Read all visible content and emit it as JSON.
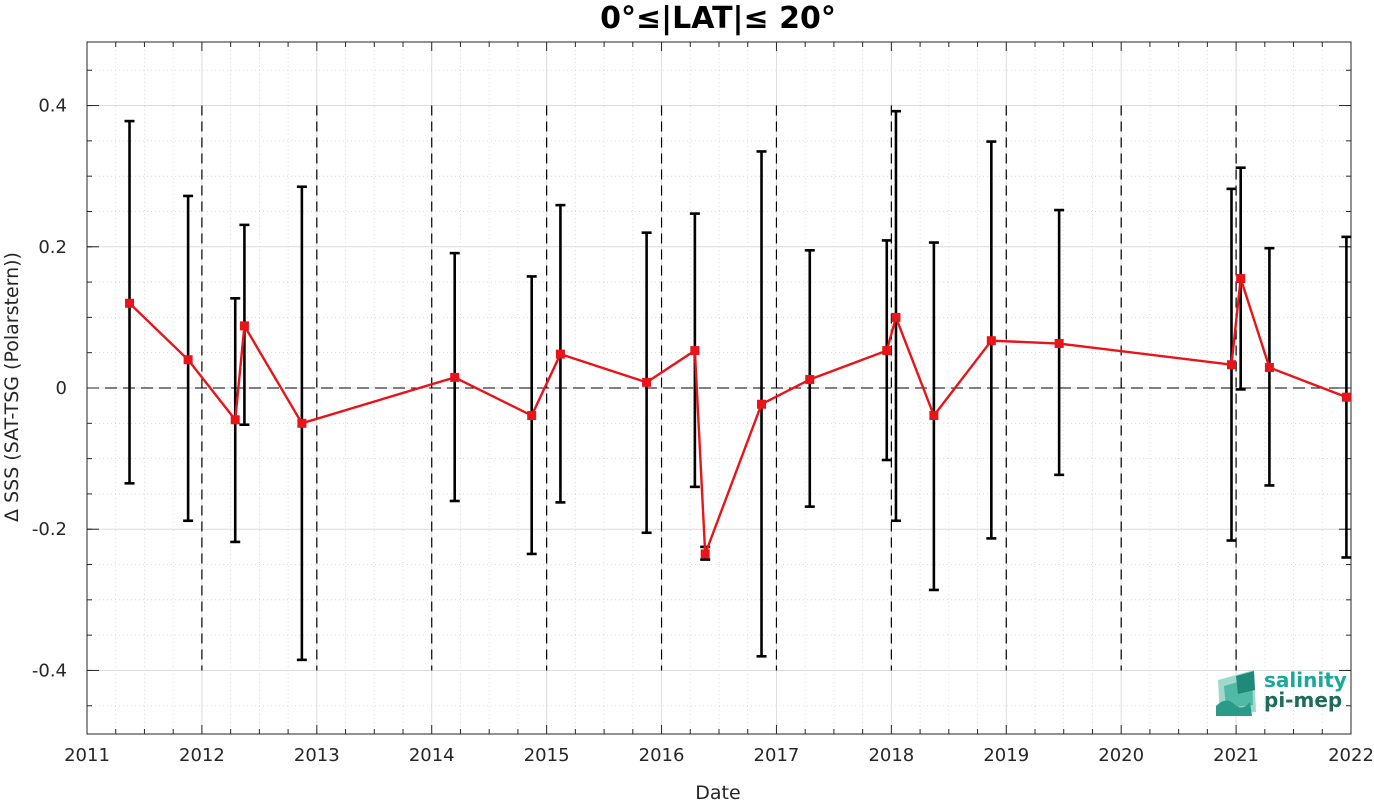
{
  "chart_data": {
    "type": "line",
    "title": "0°≤|LAT|≤ 20°",
    "xlabel": "Date",
    "ylabel": "Δ SSS (SAT-TSG (Polarstern))",
    "xlim": [
      2011,
      2022
    ],
    "ylim": [
      -0.49,
      0.49
    ],
    "x_ticks": [
      2011,
      2012,
      2013,
      2014,
      2015,
      2016,
      2017,
      2018,
      2019,
      2020,
      2021,
      2022
    ],
    "x_tick_labels": [
      "2011",
      "2012",
      "2013",
      "2014",
      "2015",
      "2016",
      "2017",
      "2018",
      "2019",
      "2020",
      "2021",
      "2022"
    ],
    "y_ticks": [
      -0.4,
      -0.2,
      0,
      0.2,
      0.4
    ],
    "y_tick_labels": [
      "-0.4",
      "-0.2",
      "0",
      "0.2",
      "0.4"
    ],
    "grid": true,
    "zero_line": true,
    "year_boundary_lines": [
      2012,
      2013,
      2014,
      2015,
      2016,
      2017,
      2018,
      2019,
      2020,
      2021
    ],
    "series": [
      {
        "color": "#e8141a",
        "x": [
          2011.37,
          2011.88,
          2012.29,
          2012.37,
          2012.87,
          2014.2,
          2014.87,
          2015.12,
          2015.87,
          2016.29,
          2016.38,
          2016.87,
          2017.29,
          2017.96,
          2018.04,
          2018.37,
          2018.87,
          2019.46,
          2020.96,
          2021.04,
          2021.29,
          2021.96
        ],
        "y": [
          0.12,
          0.04,
          -0.045,
          0.088,
          -0.05,
          0.015,
          -0.039,
          0.048,
          0.008,
          0.053,
          -0.235,
          -0.023,
          0.012,
          0.053,
          0.1,
          -0.039,
          0.067,
          0.063,
          0.033,
          0.155,
          0.029,
          -0.013
        ],
        "err_low": [
          -0.135,
          -0.188,
          -0.218,
          -0.052,
          -0.385,
          -0.16,
          -0.235,
          -0.162,
          -0.205,
          -0.14,
          -0.243,
          -0.38,
          -0.168,
          -0.102,
          -0.188,
          -0.286,
          -0.213,
          -0.123,
          -0.216,
          -0.002,
          -0.138,
          -0.24
        ],
        "err_high": [
          0.378,
          0.272,
          0.127,
          0.231,
          0.285,
          0.191,
          0.158,
          0.259,
          0.22,
          0.247,
          -0.225,
          0.335,
          0.195,
          0.209,
          0.392,
          0.206,
          0.349,
          0.252,
          0.282,
          0.312,
          0.198,
          0.214
        ]
      }
    ]
  },
  "logo": {
    "line1": "salinity",
    "line2": "pi-mep",
    "color_text1": "#1ba898",
    "color_text2": "#1e6a5d"
  }
}
